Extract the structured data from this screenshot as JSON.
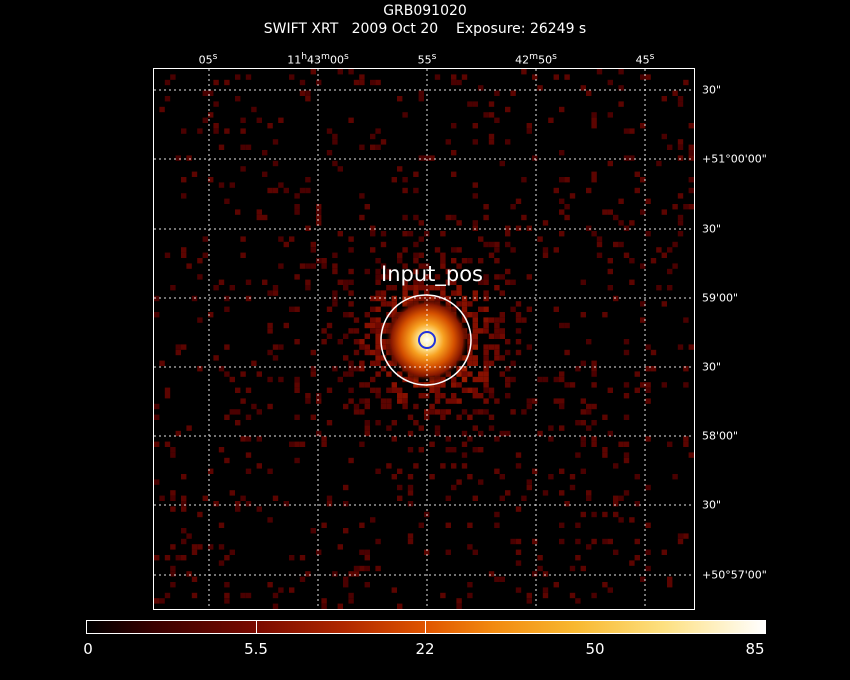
{
  "header": {
    "object": "GRB091020",
    "line2": "SWIFT XRT   2009 Oct 20    Exposure: 26249 s"
  },
  "ra_ticks": [
    "05s",
    "11h43m00s",
    "55s",
    "42m50s",
    "45s"
  ],
  "dec_ticks": [
    "30\"",
    "+51°00'00\"",
    "30\"",
    "59'00\"",
    "30\"",
    "58'00\"",
    "30\"",
    "+50°57'00\""
  ],
  "source": {
    "label": "Input_pos",
    "circle_color": "#ffffff",
    "marker_color": "#2233dd"
  },
  "colorbar": {
    "labels": [
      "0",
      "5.5",
      "22",
      "50",
      "85"
    ]
  }
}
